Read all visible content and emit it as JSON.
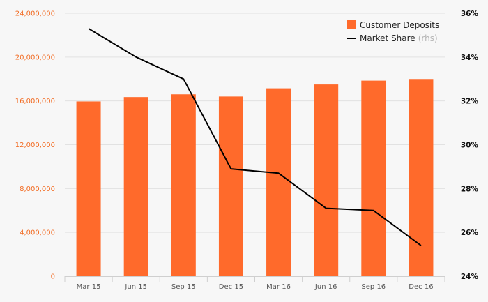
{
  "chart_data": {
    "type": "bar",
    "categories": [
      "Mar 15",
      "Jun 15",
      "Sep 15",
      "Dec 15",
      "Mar 16",
      "Jun 16",
      "Sep 16",
      "Dec 16"
    ],
    "series": [
      {
        "name": "Customer Deposits",
        "type": "bar",
        "axis": "left",
        "color": "#ff6a2b",
        "values": [
          15950000,
          16350000,
          16600000,
          16400000,
          17150000,
          17500000,
          17850000,
          18000000
        ]
      },
      {
        "name": "Market Share",
        "name_suffix": "(rhs)",
        "type": "line",
        "axis": "right",
        "color": "#000000",
        "values": [
          35.3,
          34.0,
          33.0,
          28.9,
          28.7,
          27.1,
          27.0,
          25.4
        ]
      }
    ],
    "y_left": {
      "range": [
        0,
        24000000
      ],
      "ticks": [
        0,
        4000000,
        8000000,
        12000000,
        16000000,
        20000000,
        24000000
      ],
      "tick_labels": [
        "0",
        "4,000,000",
        "8,000,000",
        "12,000,000",
        "16,000,000",
        "20,000,000",
        "24,000,000"
      ],
      "color": "#f26b22"
    },
    "y_right": {
      "range": [
        24,
        36
      ],
      "ticks": [
        24,
        26,
        28,
        30,
        32,
        34,
        36
      ],
      "tick_labels": [
        "24%",
        "26%",
        "28%",
        "30%",
        "32%",
        "34%",
        "36%"
      ]
    },
    "grid": true,
    "legend_position": "top-right",
    "title": "",
    "xlabel": "",
    "ylabel": ""
  }
}
